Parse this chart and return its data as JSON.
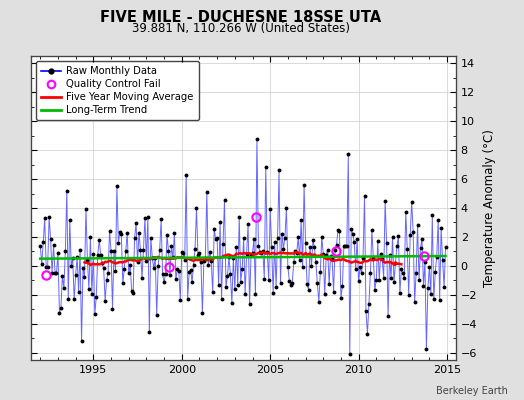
{
  "title": "FIVE MILE - DUCHESNE 18SSE UTA",
  "subtitle": "39.881 N, 110.266 W (United States)",
  "ylabel": "Temperature Anomaly (°C)",
  "watermark": "Berkeley Earth",
  "ylim": [
    -6.5,
    14.5
  ],
  "xlim": [
    1991.5,
    2015.5
  ],
  "xticks": [
    1995,
    2000,
    2005,
    2010,
    2015
  ],
  "yticks": [
    -6,
    -4,
    -2,
    0,
    2,
    4,
    6,
    8,
    10,
    12,
    14
  ],
  "raw_line_color": "#6666FF",
  "dot_color": "#000000",
  "moving_avg_color": "#FF0000",
  "trend_color": "#00BB00",
  "qc_fail_color": "#FF00FF",
  "bg_color": "#E0E0E0",
  "plot_bg_color": "#FFFFFF",
  "grid_color": "#CCCCCC",
  "legend_labels": [
    "Raw Monthly Data",
    "Quality Control Fail",
    "Five Year Moving Average",
    "Long-Term Trend"
  ],
  "seed_data": 7,
  "seed_noise": 42,
  "start_year": 1992.0,
  "end_year": 2015.0
}
